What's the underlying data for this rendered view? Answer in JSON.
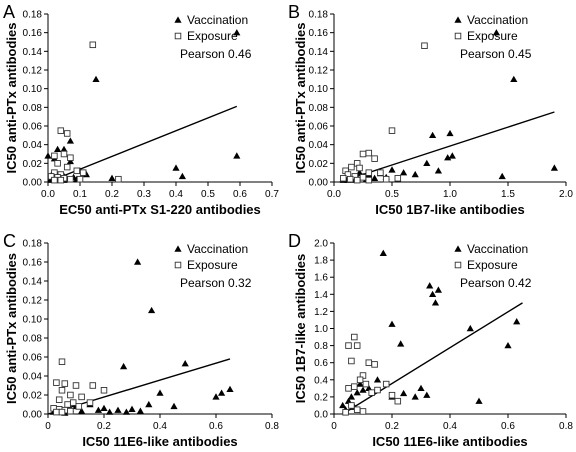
{
  "chart_data": [
    {
      "type": "scatter",
      "panel": "A",
      "xlabel": "EC50 anti-PTx S1-220 antibodies",
      "ylabel": "IC50 anti-PTx antibodies",
      "xlim": [
        0,
        0.7
      ],
      "ylim": [
        0,
        0.18
      ],
      "xticks": [
        "0.0",
        "0.1",
        "0.2",
        "0.3",
        "0.4",
        "0.5",
        "0.6",
        "0.7"
      ],
      "yticks": [
        "0.00",
        "0.02",
        "0.04",
        "0.06",
        "0.08",
        "0.10",
        "0.12",
        "0.14",
        "0.16",
        "0.18"
      ],
      "annotation": "Pearson 0.46",
      "legend": [
        "Vaccination",
        "Exposure"
      ],
      "legend_position": "top-right",
      "trendline": [
        [
          0.0,
          0.0
        ],
        [
          0.59,
          0.081
        ]
      ],
      "series": [
        {
          "name": "Vaccination",
          "marker": "triangle",
          "points": [
            [
              0.59,
              0.16
            ],
            [
              0.15,
              0.11
            ],
            [
              0.59,
              0.028
            ],
            [
              0.4,
              0.015
            ],
            [
              0.42,
              0.006
            ],
            [
              0.07,
              0.044
            ],
            [
              0.05,
              0.035
            ],
            [
              0.03,
              0.035
            ],
            [
              0.0,
              0.028
            ],
            [
              0.02,
              0.025
            ],
            [
              0.07,
              0.022
            ],
            [
              0.1,
              0.012
            ],
            [
              0.12,
              0.008
            ],
            [
              0.01,
              0.007
            ],
            [
              0.03,
              0.006
            ],
            [
              0.05,
              0.006
            ],
            [
              0.08,
              0.005
            ],
            [
              0.01,
              0.004
            ],
            [
              0.02,
              0.004
            ],
            [
              0.04,
              0.003
            ],
            [
              0.06,
              0.003
            ],
            [
              0.09,
              0.003
            ],
            [
              0.03,
              0.002
            ],
            [
              0.05,
              0.002
            ],
            [
              0.01,
              0.002
            ],
            [
              0.2,
              0.004
            ]
          ]
        },
        {
          "name": "Exposure",
          "marker": "square",
          "points": [
            [
              0.14,
              0.147
            ],
            [
              0.04,
              0.055
            ],
            [
              0.06,
              0.052
            ],
            [
              0.05,
              0.03
            ],
            [
              0.02,
              0.028
            ],
            [
              0.07,
              0.026
            ],
            [
              0.03,
              0.02
            ],
            [
              0.06,
              0.016
            ],
            [
              0.09,
              0.012
            ],
            [
              0.11,
              0.01
            ],
            [
              0.02,
              0.01
            ],
            [
              0.04,
              0.008
            ],
            [
              0.01,
              0.006
            ],
            [
              0.03,
              0.005
            ],
            [
              0.05,
              0.004
            ],
            [
              0.07,
              0.003
            ],
            [
              0.22,
              0.003
            ],
            [
              0.1,
              0.003
            ],
            [
              0.02,
              0.002
            ],
            [
              0.04,
              0.002
            ]
          ]
        }
      ]
    },
    {
      "type": "scatter",
      "panel": "B",
      "xlabel": "IC50 1B7-like antibodies",
      "ylabel": "IC50 anti-PTx antibodies",
      "xlim": [
        0,
        2.0
      ],
      "ylim": [
        0,
        0.18
      ],
      "xticks": [
        "0.0",
        "0.5",
        "1.0",
        "1.5",
        "2.0"
      ],
      "yticks": [
        "0.00",
        "0.02",
        "0.04",
        "0.06",
        "0.08",
        "0.10",
        "0.12",
        "0.14",
        "0.16",
        "0.18"
      ],
      "annotation": "Pearson 0.45",
      "legend": [
        "Vaccination",
        "Exposure"
      ],
      "legend_position": "top-right",
      "trendline": [
        [
          0.05,
          0.0
        ],
        [
          1.9,
          0.075
        ]
      ],
      "series": [
        {
          "name": "Vaccination",
          "marker": "triangle",
          "points": [
            [
              1.4,
              0.16
            ],
            [
              1.55,
              0.11
            ],
            [
              1.9,
              0.015
            ],
            [
              1.02,
              0.028
            ],
            [
              0.98,
              0.026
            ],
            [
              0.85,
              0.05
            ],
            [
              0.8,
              0.02
            ],
            [
              1.45,
              0.006
            ],
            [
              0.6,
              0.01
            ],
            [
              0.5,
              0.013
            ],
            [
              0.4,
              0.009
            ],
            [
              0.3,
              0.008
            ],
            [
              0.25,
              0.006
            ],
            [
              0.2,
              0.004
            ],
            [
              0.15,
              0.003
            ],
            [
              0.1,
              0.004
            ],
            [
              0.12,
              0.002
            ],
            [
              0.18,
              0.002
            ],
            [
              0.35,
              0.004
            ],
            [
              0.45,
              0.005
            ],
            [
              0.7,
              0.008
            ],
            [
              0.9,
              0.012
            ],
            [
              0.22,
              0.01
            ],
            [
              0.28,
              0.003
            ],
            [
              0.08,
              0.002
            ],
            [
              1.0,
              0.052
            ]
          ]
        },
        {
          "name": "Exposure",
          "marker": "square",
          "points": [
            [
              0.78,
              0.146
            ],
            [
              0.5,
              0.055
            ],
            [
              0.25,
              0.03
            ],
            [
              0.3,
              0.031
            ],
            [
              0.35,
              0.025
            ],
            [
              0.2,
              0.02
            ],
            [
              0.22,
              0.015
            ],
            [
              0.15,
              0.016
            ],
            [
              0.1,
              0.012
            ],
            [
              0.3,
              0.01
            ],
            [
              0.4,
              0.01
            ],
            [
              0.12,
              0.008
            ],
            [
              0.18,
              0.006
            ],
            [
              0.25,
              0.005
            ],
            [
              0.08,
              0.004
            ],
            [
              0.14,
              0.003
            ],
            [
              0.2,
              0.002
            ],
            [
              0.3,
              0.002
            ],
            [
              0.45,
              0.003
            ],
            [
              0.55,
              0.004
            ]
          ]
        }
      ]
    },
    {
      "type": "scatter",
      "panel": "C",
      "xlabel": "IC50 11E6-like antibodies",
      "ylabel": "IC50 anti-PTx antibodies",
      "xlim": [
        0,
        0.8
      ],
      "ylim": [
        0,
        0.18
      ],
      "xticks": [
        "0",
        "0.2",
        "0.4",
        "0.6",
        "0.8"
      ],
      "yticks": [
        "0.00",
        "0.02",
        "0.04",
        "0.06",
        "0.08",
        "0.10",
        "0.12",
        "0.14",
        "0.16",
        "0.18"
      ],
      "annotation": "Pearson 0.32",
      "legend": [
        "Vaccination",
        "Exposure"
      ],
      "legend_position": "top-right",
      "trendline": [
        [
          0.0,
          0.0
        ],
        [
          0.65,
          0.058
        ]
      ],
      "series": [
        {
          "name": "Vaccination",
          "marker": "triangle",
          "points": [
            [
              0.32,
              0.16
            ],
            [
              0.37,
              0.109
            ],
            [
              0.27,
              0.05
            ],
            [
              0.49,
              0.053
            ],
            [
              0.4,
              0.022
            ],
            [
              0.62,
              0.022
            ],
            [
              0.65,
              0.026
            ],
            [
              0.6,
              0.018
            ],
            [
              0.36,
              0.01
            ],
            [
              0.3,
              0.005
            ],
            [
              0.25,
              0.004
            ],
            [
              0.2,
              0.006
            ],
            [
              0.15,
              0.01
            ],
            [
              0.1,
              0.008
            ],
            [
              0.08,
              0.005
            ],
            [
              0.05,
              0.004
            ],
            [
              0.03,
              0.003
            ],
            [
              0.02,
              0.002
            ],
            [
              0.04,
              0.002
            ],
            [
              0.06,
              0.001
            ],
            [
              0.12,
              0.003
            ],
            [
              0.18,
              0.004
            ],
            [
              0.45,
              0.008
            ],
            [
              0.33,
              0.003
            ],
            [
              0.28,
              0.002
            ],
            [
              0.22,
              0.002
            ]
          ]
        },
        {
          "name": "Exposure",
          "marker": "square",
          "points": [
            [
              0.05,
              0.055
            ],
            [
              0.03,
              0.033
            ],
            [
              0.06,
              0.032
            ],
            [
              0.05,
              0.025
            ],
            [
              0.1,
              0.03
            ],
            [
              0.16,
              0.03
            ],
            [
              0.08,
              0.02
            ],
            [
              0.12,
              0.018
            ],
            [
              0.04,
              0.015
            ],
            [
              0.09,
              0.012
            ],
            [
              0.15,
              0.012
            ],
            [
              0.07,
              0.01
            ],
            [
              0.11,
              0.008
            ],
            [
              0.2,
              0.025
            ],
            [
              0.02,
              0.006
            ],
            [
              0.04,
              0.005
            ],
            [
              0.06,
              0.004
            ],
            [
              0.08,
              0.003
            ],
            [
              0.03,
              0.002
            ],
            [
              0.05,
              0.002
            ]
          ]
        }
      ]
    },
    {
      "type": "scatter",
      "panel": "D",
      "xlabel": "IC50 11E6-like antibodies",
      "ylabel": "IC50 1B7-like antibodies",
      "xlim": [
        0,
        0.8
      ],
      "ylim": [
        0,
        2.0
      ],
      "xticks": [
        "0",
        "0.2",
        "0.4",
        "0.6",
        "0.8"
      ],
      "yticks": [
        "0.0",
        "0.2",
        "0.4",
        "0.6",
        "0.8",
        "1.0",
        "1.2",
        "1.4",
        "1.6",
        "1.8",
        "2.0"
      ],
      "annotation": "Pearson 0.42",
      "legend": [
        "Vaccination",
        "Exposure"
      ],
      "legend_position": "top-right",
      "trendline": [
        [
          0.03,
          0.0
        ],
        [
          0.65,
          1.3
        ]
      ],
      "series": [
        {
          "name": "Vaccination",
          "marker": "triangle",
          "points": [
            [
              0.17,
              1.88
            ],
            [
              0.33,
              1.5
            ],
            [
              0.34,
              1.4
            ],
            [
              0.36,
              1.45
            ],
            [
              0.35,
              1.3
            ],
            [
              0.63,
              1.08
            ],
            [
              0.6,
              0.8
            ],
            [
              0.47,
              1.0
            ],
            [
              0.5,
              0.15
            ],
            [
              0.2,
              1.05
            ],
            [
              0.23,
              0.82
            ],
            [
              0.3,
              0.3
            ],
            [
              0.32,
              0.22
            ],
            [
              0.28,
              0.2
            ],
            [
              0.24,
              0.24
            ],
            [
              0.2,
              0.2
            ],
            [
              0.15,
              0.4
            ],
            [
              0.12,
              0.3
            ],
            [
              0.1,
              0.28
            ],
            [
              0.08,
              0.25
            ],
            [
              0.06,
              0.2
            ],
            [
              0.05,
              0.15
            ],
            [
              0.04,
              0.05
            ],
            [
              0.03,
              0.1
            ],
            [
              0.07,
              0.08
            ],
            [
              0.09,
              0.35
            ]
          ]
        },
        {
          "name": "Exposure",
          "marker": "square",
          "points": [
            [
              0.05,
              0.8
            ],
            [
              0.07,
              0.9
            ],
            [
              0.08,
              0.8
            ],
            [
              0.06,
              0.62
            ],
            [
              0.12,
              0.6
            ],
            [
              0.14,
              0.58
            ],
            [
              0.1,
              0.45
            ],
            [
              0.09,
              0.4
            ],
            [
              0.11,
              0.35
            ],
            [
              0.07,
              0.32
            ],
            [
              0.05,
              0.3
            ],
            [
              0.13,
              0.25
            ],
            [
              0.15,
              0.28
            ],
            [
              0.18,
              0.35
            ],
            [
              0.2,
              0.22
            ],
            [
              0.22,
              0.15
            ],
            [
              0.06,
              0.1
            ],
            [
              0.08,
              0.05
            ],
            [
              0.04,
              0.02
            ],
            [
              0.1,
              0.03
            ]
          ]
        }
      ]
    }
  ]
}
